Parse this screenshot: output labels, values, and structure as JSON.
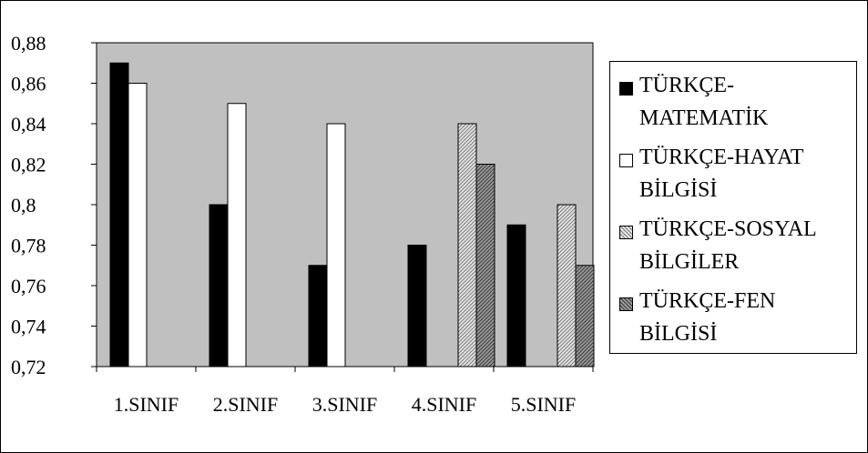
{
  "chart_data": {
    "type": "bar",
    "categories": [
      "1.SINIF",
      "2.SINIF",
      "3.SINIF",
      "4.SINIF",
      "5.SINIF"
    ],
    "ylim": [
      0.72,
      0.88
    ],
    "yticks": [
      "0,72",
      "0,74",
      "0,76",
      "0,78",
      "0,8",
      "0,82",
      "0,84",
      "0,86",
      "0,88"
    ],
    "ytick_values": [
      0.72,
      0.74,
      0.76,
      0.78,
      0.8,
      0.82,
      0.84,
      0.86,
      0.88
    ],
    "grid": false,
    "legend_position": "right",
    "series": [
      {
        "name": "TÜRKÇE-MATEMATİK",
        "values": [
          0.87,
          0.8,
          0.77,
          0.78,
          0.79
        ],
        "color": "#000000",
        "pattern": "solid"
      },
      {
        "name": "TÜRKÇE-HAYAT BİLGİSİ",
        "values": [
          0.86,
          0.85,
          0.84,
          null,
          null
        ],
        "color": "#ffffff",
        "pattern": "solid"
      },
      {
        "name": "TÜRKÇE-SOSYAL BİLGİLER",
        "values": [
          null,
          null,
          null,
          0.84,
          0.8
        ],
        "color": "#c8c8c8",
        "pattern": "light-hatch"
      },
      {
        "name": "TÜRKÇE-FEN BİLGİSİ",
        "values": [
          null,
          null,
          null,
          0.82,
          0.77
        ],
        "color": "#808080",
        "pattern": "dark-hatch"
      }
    ],
    "plot_background": "#c0c0c0"
  }
}
